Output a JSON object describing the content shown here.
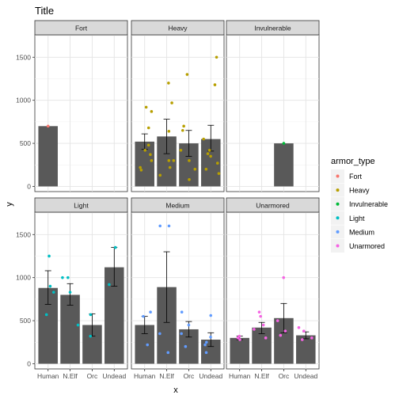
{
  "chart_data": {
    "type": "bar",
    "title": "Title",
    "xlabel": "x",
    "ylabel": "y",
    "categories": [
      "Human",
      "N.Elf",
      "Orc",
      "Undead"
    ],
    "ylim": [
      -60,
      1760
    ],
    "yticks": [
      0,
      500,
      1000,
      1500
    ],
    "grid": true,
    "legend_title": "armor_type",
    "legend_position": "right",
    "colors": {
      "Fort": "#F8766D",
      "Heavy": "#B79F00",
      "Invulnerable": "#00BA38",
      "Light": "#00BFC4",
      "Medium": "#619CFF",
      "Unarmored": "#F564E3"
    },
    "facets": [
      {
        "name": "Fort",
        "bars": [
          {
            "category": "Human",
            "value": 700,
            "points": [
              700
            ]
          }
        ]
      },
      {
        "name": "Heavy",
        "bars": [
          {
            "category": "Human",
            "value": 520,
            "err": [
              430,
              610
            ],
            "points": [
              920,
              870,
              680,
              480,
              420,
              370,
              300,
              220,
              190
            ]
          },
          {
            "category": "N.Elf",
            "value": 580,
            "err": [
              380,
              780
            ],
            "points": [
              1200,
              970,
              640,
              300,
              300,
              220,
              130
            ]
          },
          {
            "category": "Orc",
            "value": 500,
            "err": [
              350,
              650
            ],
            "points": [
              1300,
              700,
              650,
              420,
              300,
              200,
              80
            ]
          },
          {
            "category": "Undead",
            "value": 550,
            "err": [
              410,
              710
            ],
            "points": [
              1500,
              1180,
              550,
              420,
              380,
              350,
              270,
              200,
              150
            ]
          }
        ]
      },
      {
        "name": "Invulnerable",
        "bars": [
          {
            "category": "Orc",
            "value": 500,
            "points": [
              500
            ]
          }
        ]
      },
      {
        "name": "Light",
        "bars": [
          {
            "category": "Human",
            "value": 880,
            "err": [
              690,
              1080
            ],
            "points": [
              1250,
              900,
              830,
              570
            ]
          },
          {
            "category": "N.Elf",
            "value": 800,
            "err": [
              680,
              930
            ],
            "points": [
              1000,
              1000,
              830,
              450
            ]
          },
          {
            "category": "Orc",
            "value": 450,
            "err": [
              320,
              580
            ],
            "points": [
              570,
              320
            ]
          },
          {
            "category": "Undead",
            "value": 1120,
            "err": [
              900,
              1350
            ],
            "points": [
              1350,
              920
            ]
          }
        ]
      },
      {
        "name": "Medium",
        "bars": [
          {
            "category": "Human",
            "value": 450,
            "err": [
              350,
              550
            ],
            "points": [
              600,
              550,
              220
            ]
          },
          {
            "category": "N.Elf",
            "value": 890,
            "err": [
              480,
              1300
            ],
            "points": [
              1600,
              1600,
              350,
              130
            ]
          },
          {
            "category": "Orc",
            "value": 400,
            "err": [
              310,
              490
            ],
            "points": [
              600,
              450,
              350,
              200
            ]
          },
          {
            "category": "Undead",
            "value": 280,
            "err": [
              200,
              360
            ],
            "points": [
              560,
              310,
              250,
              220,
              130
            ]
          }
        ]
      },
      {
        "name": "Unarmored",
        "bars": [
          {
            "category": "Human",
            "value": 300,
            "err": [
              280,
              320
            ],
            "points": [
              320,
              300,
              280
            ]
          },
          {
            "category": "N.Elf",
            "value": 420,
            "err": [
              350,
              480
            ],
            "points": [
              600,
              550,
              450,
              400,
              300
            ]
          },
          {
            "category": "Orc",
            "value": 530,
            "err": [
              360,
              700
            ],
            "points": [
              1000,
              500,
              380,
              330
            ]
          },
          {
            "category": "Undead",
            "value": 330,
            "err": [
              290,
              370
            ],
            "points": [
              420,
              380,
              300,
              280
            ]
          }
        ]
      }
    ]
  }
}
